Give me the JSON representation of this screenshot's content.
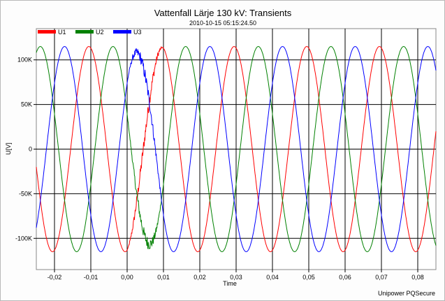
{
  "chart_data": {
    "type": "line",
    "title": "Vattenfall Lärje 130 kV: Transients",
    "subtitle": "2010-10-15 05:15:24.50",
    "xlabel": "Time",
    "ylabel": "U[V]",
    "footer": "Unipower PQSecure",
    "xlim": [
      -0.025,
      0.085
    ],
    "ylim": [
      -135000,
      135000
    ],
    "x_ticks": [
      -0.02,
      -0.01,
      0.0,
      0.01,
      0.02,
      0.03,
      0.04,
      0.05,
      0.06,
      0.07,
      0.08
    ],
    "x_tick_labels": [
      "-0,02",
      "-0,01",
      "0,00",
      "0,01",
      "0,02",
      "0,03",
      "0,04",
      "0,05",
      "0,06",
      "0,07",
      "0,08"
    ],
    "y_ticks": [
      100000,
      50000,
      0,
      -50000,
      -100000
    ],
    "y_tick_labels": [
      "100K",
      "50K",
      "0",
      "-50K",
      "-100K"
    ],
    "grid": true,
    "legend_position": "top-left",
    "amplitude": 115000,
    "frequency_hz": 50,
    "series": [
      {
        "name": "U1",
        "color": "#ff0000",
        "phase_deg": 280
      },
      {
        "name": "U2",
        "color": "#008000",
        "phase_deg": 160
      },
      {
        "name": "U3",
        "color": "#0000ff",
        "phase_deg": 40
      }
    ],
    "transient": {
      "t_start": 0.0,
      "t_end": 0.01,
      "notes": "Disturbed waveforms between 0.00 s and 0.01 s"
    }
  }
}
